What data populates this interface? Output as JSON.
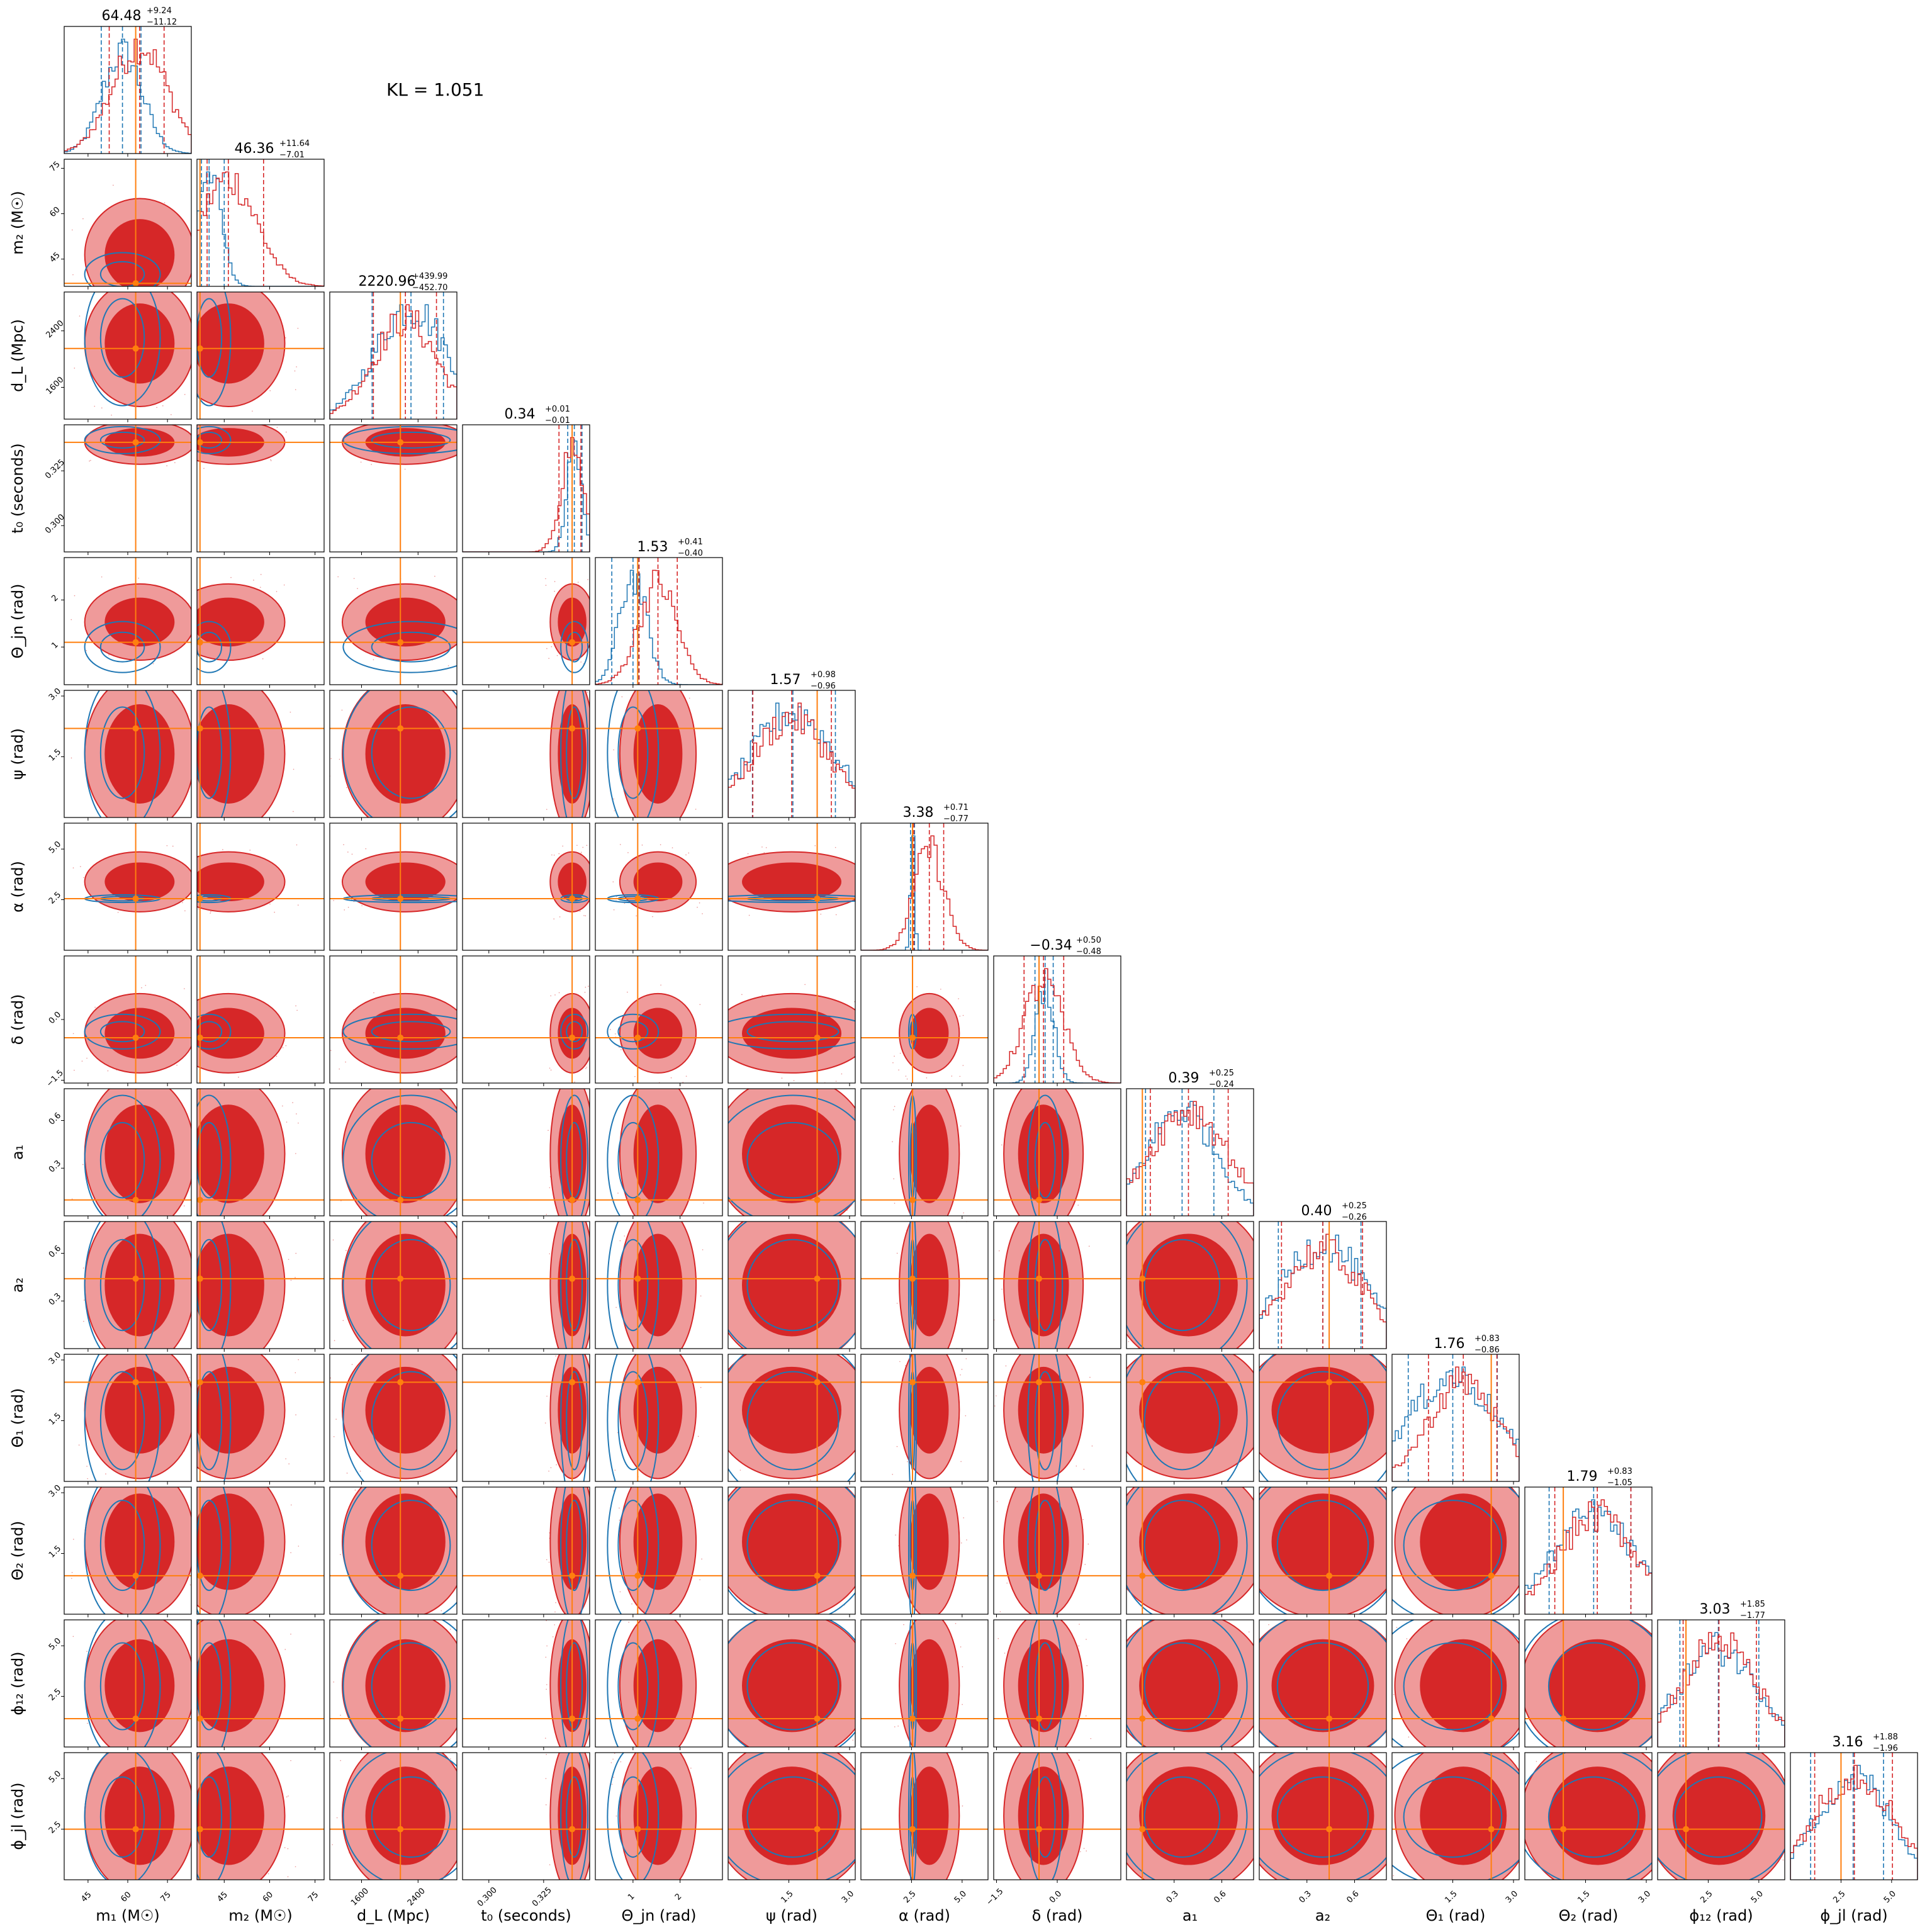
{
  "chart_data": {
    "type": "corner",
    "annotation": "KL = 1.051",
    "colors": {
      "posterior_a": "#d62728",
      "posterior_b": "#1f77b4",
      "truth": "#ff7f0e"
    },
    "parameters": [
      {
        "key": "m1",
        "xlabel": "m₁ (M☉)",
        "ylabel": "",
        "median_title": "64.48",
        "plus": "+9.24",
        "minus": "−11.12",
        "range": [
          36,
          84
        ],
        "ticks": [
          45,
          60,
          75
        ],
        "tick_labels": [
          "45",
          "60",
          "75"
        ],
        "truth": 63.0,
        "red_quantiles": [
          53,
          64.48,
          73.72
        ],
        "blue_quantiles": [
          50,
          58,
          65
        ]
      },
      {
        "key": "m2",
        "xlabel": "m₂ (M☉)",
        "ylabel": "m₂ (M☉)",
        "median_title": "46.36",
        "plus": "+11.64",
        "minus": "−7.01",
        "range": [
          36,
          78
        ],
        "ticks": [
          45,
          60,
          75
        ],
        "tick_labels": [
          "45",
          "60",
          "75"
        ],
        "truth": 37.0,
        "red_quantiles": [
          39.35,
          46.36,
          58.0
        ],
        "blue_quantiles": [
          37.5,
          40,
          45
        ]
      },
      {
        "key": "dL",
        "xlabel": "d_L (Mpc)",
        "ylabel": "d_L (Mpc)",
        "median_title": "2220.96",
        "plus": "+439.99",
        "minus": "−452.70",
        "range": [
          1150,
          2950
        ],
        "ticks": [
          1600,
          2400
        ],
        "tick_labels": [
          "1600",
          "2400"
        ],
        "truth": 2150,
        "red_quantiles": [
          1768,
          2221,
          2661
        ],
        "blue_quantiles": [
          1750,
          2300,
          2760
        ]
      },
      {
        "key": "t0",
        "xlabel": "t₀ (seconds)",
        "ylabel": "t₀ (seconds)",
        "median_title": "0.34",
        "plus": "+0.01",
        "minus": "−0.01",
        "range": [
          0.288,
          0.346
        ],
        "ticks": [
          0.3,
          0.325
        ],
        "tick_labels": [
          "0.300",
          "0.325"
        ],
        "truth": 0.338,
        "red_quantiles": [
          0.332,
          0.338,
          0.342
        ],
        "blue_quantiles": [
          0.336,
          0.339,
          0.3425
        ]
      },
      {
        "key": "theta_jn",
        "xlabel": "Θ_jn (rad)",
        "ylabel": "Θ_jn (rad)",
        "median_title": "1.53",
        "plus": "+0.41",
        "minus": "−0.40",
        "range": [
          0.2,
          2.9
        ],
        "ticks": [
          1,
          2
        ],
        "tick_labels": [
          "1",
          "2"
        ],
        "truth": 1.1,
        "red_quantiles": [
          1.13,
          1.53,
          1.94
        ],
        "blue_quantiles": [
          0.55,
          1.0,
          1.12
        ]
      },
      {
        "key": "psi",
        "xlabel": "ψ (rad)",
        "ylabel": "ψ (rad)",
        "median_title": "1.57",
        "plus": "+0.98",
        "minus": "−0.96",
        "range": [
          0.0,
          3.14
        ],
        "ticks": [
          1.5,
          3.0
        ],
        "tick_labels": [
          "1.5",
          "3.0"
        ],
        "truth": 2.2,
        "red_quantiles": [
          0.61,
          1.57,
          2.55
        ],
        "blue_quantiles": [
          0.6,
          1.6,
          2.65
        ]
      },
      {
        "key": "alpha",
        "xlabel": "α (rad)",
        "ylabel": "α (rad)",
        "median_title": "3.38",
        "plus": "+0.71",
        "minus": "−0.77",
        "range": [
          0.0,
          6.28
        ],
        "ticks": [
          2.5,
          5.0
        ],
        "tick_labels": [
          "2.5",
          "5.0"
        ],
        "truth": 2.55,
        "red_quantiles": [
          2.61,
          3.38,
          4.09
        ],
        "blue_quantiles": [
          2.45,
          2.55,
          2.65
        ]
      },
      {
        "key": "delta",
        "xlabel": "δ (rad)",
        "ylabel": "δ (rad)",
        "median_title": "−0.34",
        "plus": "+0.50",
        "minus": "−0.48",
        "range": [
          -1.57,
          1.57
        ],
        "ticks": [
          -1.5,
          0.0
        ],
        "tick_labels": [
          "−1.5",
          "0.0"
        ],
        "truth": -0.45,
        "red_quantiles": [
          -0.82,
          -0.34,
          0.16
        ],
        "blue_quantiles": [
          -0.55,
          -0.3,
          -0.1
        ]
      },
      {
        "key": "a1",
        "xlabel": "a₁",
        "ylabel": "a₁",
        "median_title": "0.39",
        "plus": "+0.25",
        "minus": "−0.24",
        "range": [
          0.0,
          0.8
        ],
        "ticks": [
          0.3,
          0.6
        ],
        "tick_labels": [
          "0.3",
          "0.6"
        ],
        "truth": 0.1,
        "red_quantiles": [
          0.15,
          0.39,
          0.64
        ],
        "blue_quantiles": [
          0.12,
          0.35,
          0.55
        ]
      },
      {
        "key": "a2",
        "xlabel": "a₂",
        "ylabel": "a₂",
        "median_title": "0.40",
        "plus": "+0.25",
        "minus": "−0.26",
        "range": [
          0.0,
          0.8
        ],
        "ticks": [
          0.3,
          0.6
        ],
        "tick_labels": [
          "0.3",
          "0.6"
        ],
        "truth": 0.44,
        "red_quantiles": [
          0.14,
          0.4,
          0.65
        ],
        "blue_quantiles": [
          0.12,
          0.4,
          0.64
        ]
      },
      {
        "key": "theta1",
        "xlabel": "Θ₁ (rad)",
        "ylabel": "Θ₁ (rad)",
        "median_title": "1.76",
        "plus": "+0.83",
        "minus": "−0.86",
        "range": [
          0.0,
          3.14
        ],
        "ticks": [
          1.5,
          3.0
        ],
        "tick_labels": [
          "1.5",
          "3.0"
        ],
        "truth": 2.45,
        "red_quantiles": [
          0.9,
          1.76,
          2.59
        ],
        "blue_quantiles": [
          0.4,
          1.5,
          2.6
        ]
      },
      {
        "key": "theta2",
        "xlabel": "Θ₂ (rad)",
        "ylabel": "Θ₂ (rad)",
        "median_title": "1.79",
        "plus": "+0.83",
        "minus": "−1.05",
        "range": [
          0.0,
          3.14
        ],
        "ticks": [
          1.5,
          3.0
        ],
        "tick_labels": [
          "1.5",
          "3.0"
        ],
        "truth": 0.95,
        "red_quantiles": [
          0.74,
          1.79,
          2.62
        ],
        "blue_quantiles": [
          0.6,
          1.7,
          2.62
        ]
      },
      {
        "key": "phi12",
        "xlabel": "ϕ₁₂ (rad)",
        "ylabel": "ϕ₁₂ (rad)",
        "median_title": "3.03",
        "plus": "+1.85",
        "minus": "−1.77",
        "range": [
          0.0,
          6.28
        ],
        "ticks": [
          2.5,
          5.0
        ],
        "tick_labels": [
          "2.5",
          "5.0"
        ],
        "truth": 1.4,
        "red_quantiles": [
          1.26,
          3.03,
          4.88
        ],
        "blue_quantiles": [
          1.1,
          3.0,
          5.0
        ]
      },
      {
        "key": "phi_jl",
        "xlabel": "ϕ_jl (rad)",
        "ylabel": "ϕ_jl (rad)",
        "median_title": "3.16",
        "plus": "+1.88",
        "minus": "−1.96",
        "range": [
          0.0,
          6.28
        ],
        "ticks": [
          2.5,
          5.0
        ],
        "tick_labels": [
          "2.5",
          "5.0"
        ],
        "truth": 2.5,
        "red_quantiles": [
          1.2,
          3.16,
          5.04
        ],
        "blue_quantiles": [
          1.0,
          3.1,
          4.6
        ]
      }
    ],
    "y_ticks": {
      "m2": [
        "45",
        "60",
        "75"
      ],
      "dL": [
        "1600",
        "2400"
      ],
      "t0": [
        "0.300",
        "0.325"
      ],
      "theta_jn": [
        "1",
        "2"
      ],
      "psi": [
        "1.5",
        "3.0"
      ],
      "alpha": [
        "2.5",
        "5.0"
      ],
      "delta": [
        "−1.5",
        "0.0"
      ],
      "a1": [
        "0.3",
        "0.6"
      ],
      "a2": [
        "0.3",
        "0.6"
      ],
      "theta1": [
        "1.5",
        "3.0"
      ],
      "theta2": [
        "1.5",
        "3.0"
      ],
      "phi12": [
        "2.5",
        "5.0"
      ],
      "phi_jl": [
        "2.5",
        "5.0"
      ]
    }
  }
}
